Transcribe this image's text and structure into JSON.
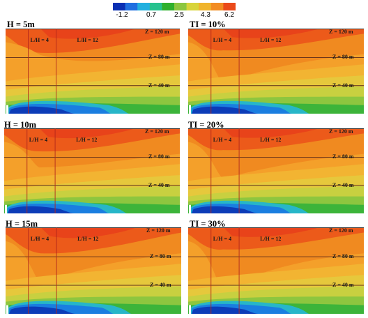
{
  "colorbar": {
    "ticks": [
      "-1.2",
      "0.7",
      "2.5",
      "4.3",
      "6.2"
    ],
    "colors": [
      "#0a2fb3",
      "#1f6fe0",
      "#22b0df",
      "#27c28e",
      "#2fb02c",
      "#8dc63f",
      "#d8d43a",
      "#f0b42c",
      "#f28c22",
      "#ea4a1a"
    ]
  },
  "labels": {
    "lh4": "L/H = 4",
    "lh12": "L/H = 12",
    "z120": "Z = 120 m",
    "z80": "Z = 80 m",
    "z40": "Z = 40 m"
  },
  "chart_data": [
    {
      "type": "heatmap",
      "title": "H = 5m",
      "ywake": 0.27,
      "strength": 0.95,
      "lh": [
        4,
        12
      ],
      "z": [
        120,
        80,
        40
      ]
    },
    {
      "type": "heatmap",
      "title": "TI = 10%",
      "ywake": 0.6,
      "strength": 0.85,
      "lh": [
        4,
        12
      ],
      "z": [
        120,
        80,
        40
      ]
    },
    {
      "type": "heatmap",
      "title": "H = 10m",
      "ywake": 0.42,
      "strength": 0.9,
      "lh": [
        4,
        12
      ],
      "z": [
        120,
        80,
        40
      ]
    },
    {
      "type": "heatmap",
      "title": "TI = 20%",
      "ywake": 0.55,
      "strength": 0.85,
      "lh": [
        4,
        12
      ],
      "z": [
        120,
        80,
        40
      ]
    },
    {
      "type": "heatmap",
      "title": "H = 15m",
      "ywake": 0.6,
      "strength": 1.0,
      "lh": [
        4,
        12
      ],
      "z": [
        120,
        80,
        40
      ]
    },
    {
      "type": "heatmap",
      "title": "TI = 30%",
      "ywake": 0.68,
      "strength": 0.85,
      "lh": [
        4,
        12
      ],
      "z": [
        120,
        80,
        40
      ]
    }
  ]
}
